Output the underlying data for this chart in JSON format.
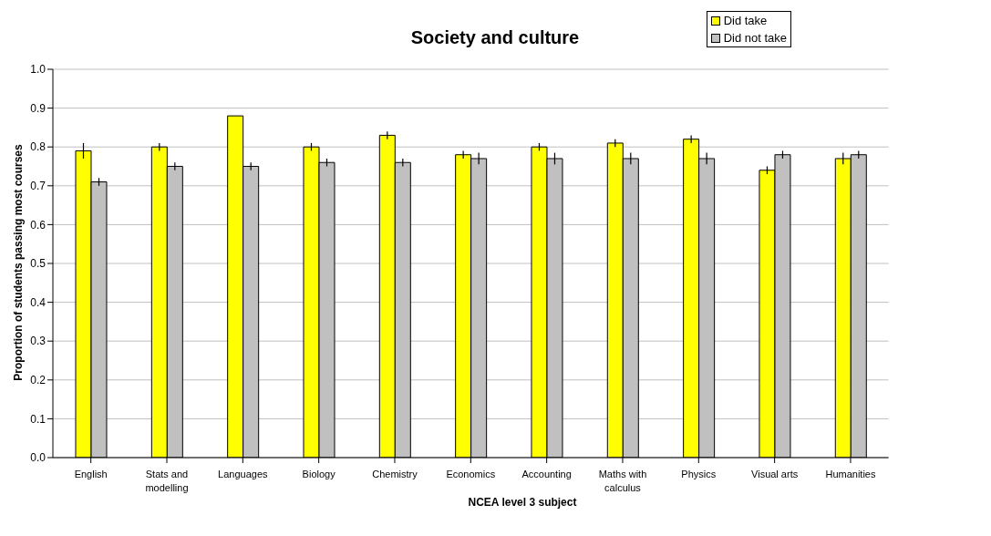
{
  "chart_data": {
    "type": "bar",
    "title": "Society and culture",
    "xlabel": "NCEA level 3 subject",
    "ylabel": "Proportion of students passing most courses",
    "categories": [
      "English",
      "Stats and modelling",
      "Languages",
      "Biology",
      "Chemistry",
      "Economics",
      "Accounting",
      "Maths with calculus",
      "Physics",
      "Visual arts",
      "Humanities"
    ],
    "series": [
      {
        "name": "Did take",
        "color": "#ffff00",
        "values": [
          0.79,
          0.8,
          0.88,
          0.8,
          0.83,
          0.78,
          0.8,
          0.81,
          0.82,
          0.74,
          0.77
        ],
        "errors": [
          0.02,
          0.01,
          0,
          0.01,
          0.01,
          0.01,
          0.01,
          0.01,
          0.01,
          0.01,
          0.015
        ]
      },
      {
        "name": "Did not take",
        "color": "#c0c0c0",
        "values": [
          0.71,
          0.75,
          0.75,
          0.76,
          0.76,
          0.77,
          0.77,
          0.77,
          0.77,
          0.78,
          0.78
        ],
        "errors": [
          0.01,
          0.01,
          0.01,
          0.01,
          0.01,
          0.015,
          0.015,
          0.015,
          0.015,
          0.01,
          0.01
        ]
      }
    ],
    "ylim": [
      0,
      1
    ],
    "yticks": [
      {
        "value": 0,
        "label": "0.0"
      },
      0.1,
      0.2,
      0.3,
      0.4,
      0.5,
      0.6,
      0.7,
      0.8,
      0.9,
      {
        "value": 1,
        "label": "1.0"
      }
    ],
    "grid": "y",
    "legend": "top right"
  }
}
